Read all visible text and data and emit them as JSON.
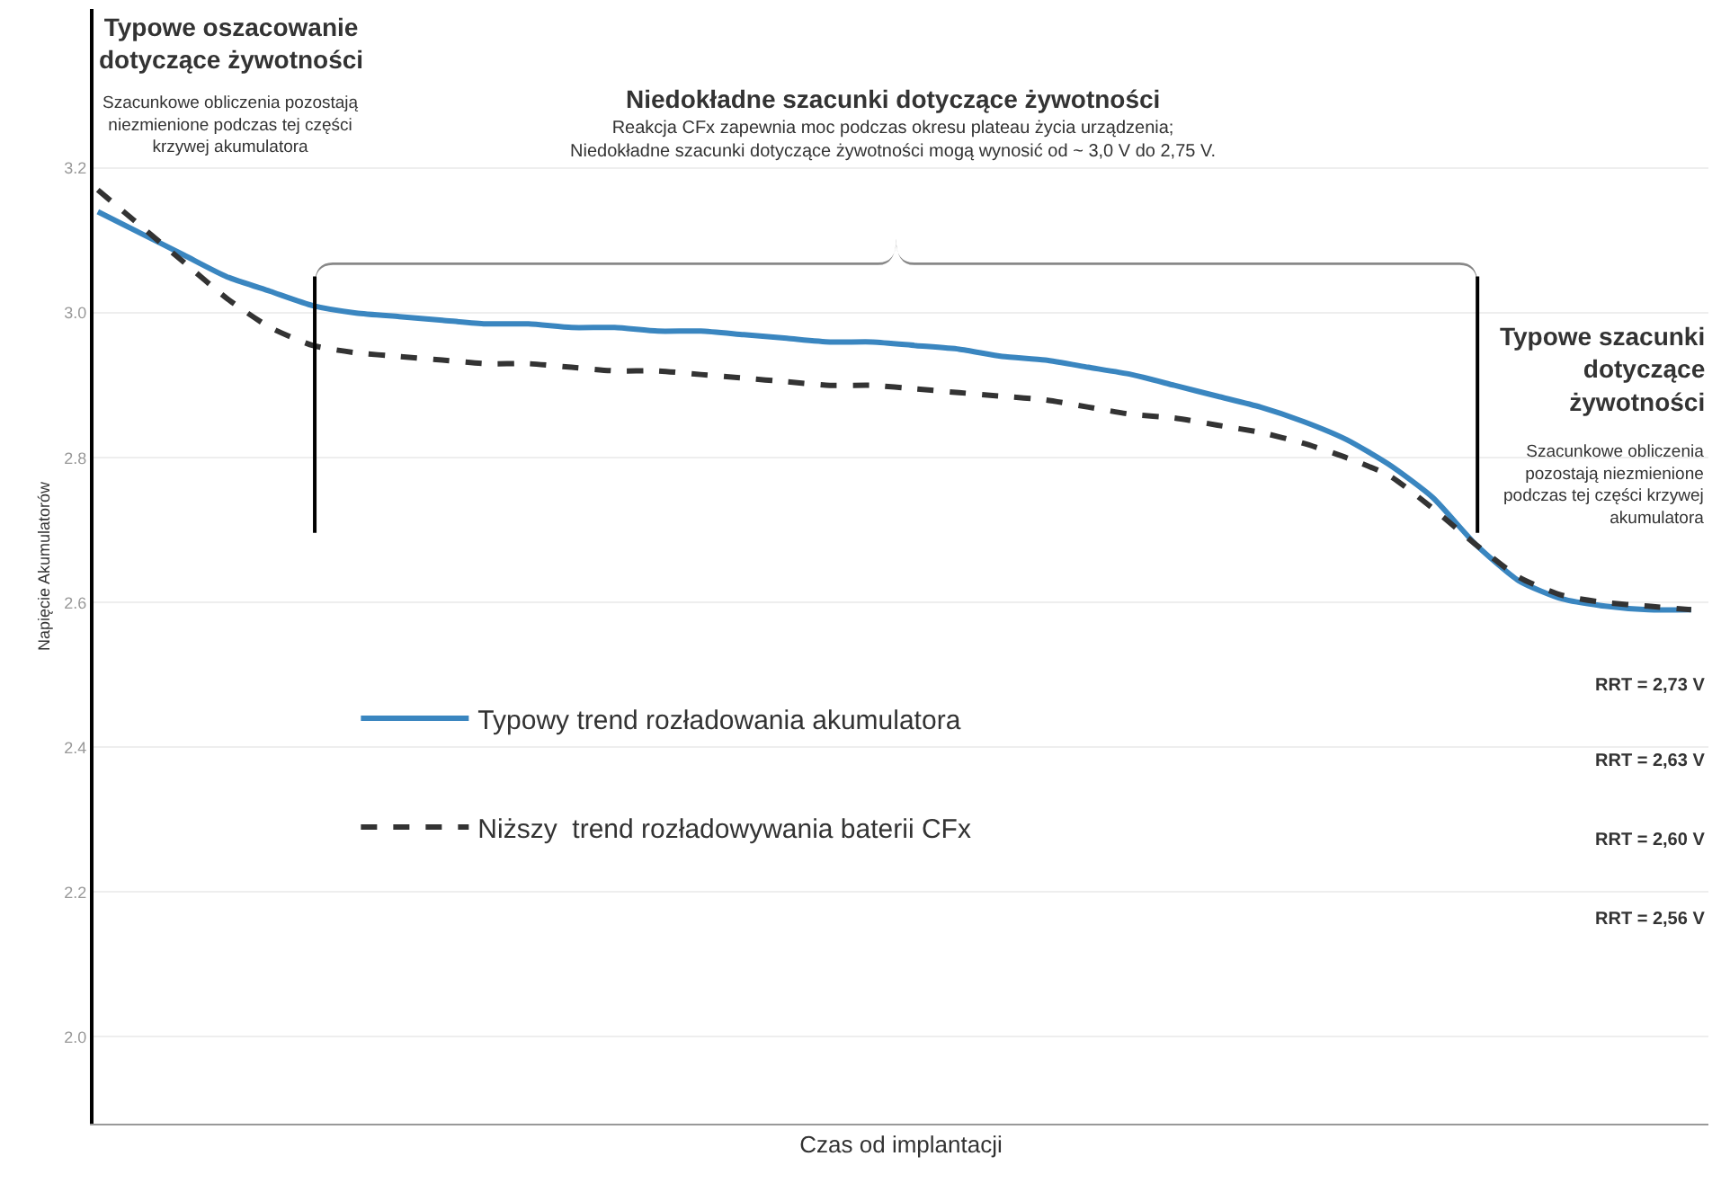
{
  "chart_data": {
    "type": "line",
    "xlabel": "Czas od implantacji",
    "ylabel": "Napięcie Akumulatorów",
    "categories": [
      null,
      null,
      null,
      null,
      null,
      null,
      null,
      null,
      null,
      null,
      null,
      null,
      null,
      null,
      null,
      null,
      null,
      null,
      null,
      null,
      null,
      null,
      null,
      null,
      null,
      null,
      null,
      null,
      null,
      null,
      null,
      null,
      null,
      null,
      null,
      null,
      null,
      null
    ],
    "series": [
      {
        "name": "Typowy trend rozładowania akumulatora",
        "color": "#3a86c0",
        "line_style": "solid",
        "values": [
          3.14,
          3.11,
          3.08,
          3.05,
          3.03,
          3.01,
          3.0,
          2.995,
          2.99,
          2.985,
          2.985,
          2.98,
          2.98,
          2.975,
          2.975,
          2.97,
          2.965,
          2.96,
          2.96,
          2.955,
          2.95,
          2.94,
          2.935,
          2.925,
          2.915,
          2.9,
          2.885,
          2.87,
          2.85,
          2.825,
          2.79,
          2.745,
          2.68,
          2.63,
          2.605,
          2.595,
          2.59,
          2.59
        ]
      },
      {
        "name": "Niższy  trend rozładowywania baterii CFx",
        "color": "#333333",
        "line_style": "dashed",
        "values": [
          3.17,
          3.12,
          3.07,
          3.02,
          2.98,
          2.955,
          2.945,
          2.94,
          2.935,
          2.93,
          2.93,
          2.925,
          2.92,
          2.92,
          2.915,
          2.91,
          2.905,
          2.9,
          2.9,
          2.895,
          2.89,
          2.885,
          2.88,
          2.87,
          2.86,
          2.855,
          2.845,
          2.835,
          2.82,
          2.8,
          2.775,
          2.73,
          2.68,
          2.635,
          2.61,
          2.6,
          2.595,
          2.59
        ]
      }
    ],
    "ylim": [
      1.88,
      3.42
    ],
    "yticks": [
      {
        "value": 2.0,
        "label": "2.0"
      },
      {
        "value": 2.2,
        "label": "2.2"
      },
      {
        "value": 2.4,
        "label": "2.4"
      },
      {
        "value": 2.6,
        "label": "2.6"
      },
      {
        "value": 2.8,
        "label": "2.8"
      },
      {
        "value": 3.0,
        "label": "3.0"
      },
      {
        "value": 3.2,
        "label": "3.2"
      }
    ],
    "tick_labels": "y",
    "grid": "y",
    "legend": "left",
    "marker": "none",
    "annotations": [
      "Typowe oszacowanie\ndotyczące żywotności",
      "Szacunkowe obliczenia pozostają\nniezmienione podczas tej części\nkrzywej akumulatora",
      "Niedokładne szacunki dotyczące żywotności",
      "Reakcja CFx zapewnia moc podczas okresu plateau życia urządzenia;\nNiedokładne szacunki dotyczące żywotności mogą wynosić od ~ 3,0 V do 2,75 V.",
      "Typowe szacunki\ndotyczące\nżywotności",
      "Szacunkowe obliczenia\npozostają niezmienione\npodczas tej części krzywej\nakumulatora",
      "RRT = 2,73 V",
      "RRT = 2,63 V",
      "RRT = 2,60 V",
      "RRT = 2,56 V"
    ]
  }
}
